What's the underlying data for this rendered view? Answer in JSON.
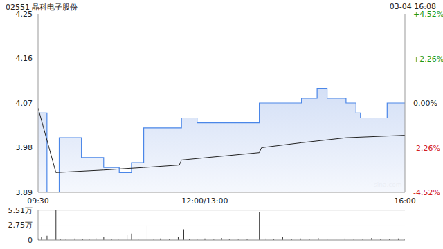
{
  "chart_data": [
    {
      "type": "line",
      "title": "02551 晶科电子股份",
      "subtitle": "03-04 16:08",
      "annotations": [
        "sina.com"
      ],
      "xlim": [
        0,
        330
      ],
      "xticks": [
        {
          "value": 0,
          "label": "09:30"
        },
        {
          "value": 150,
          "label": "12:00/13:00"
        },
        {
          "value": 330,
          "label": "16:00"
        }
      ],
      "ylim": [
        3.89,
        4.25
      ],
      "yticks": [
        3.89,
        3.98,
        4.07,
        4.16,
        4.25
      ],
      "y2lim": [
        -4.52,
        4.52
      ],
      "y2ticks": [
        {
          "value": -4.52,
          "label": "-4.52%"
        },
        {
          "value": -2.26,
          "label": "-2.26%"
        },
        {
          "value": 0,
          "label": "0.00%"
        },
        {
          "value": 2.26,
          "label": "+2.26%"
        },
        {
          "value": 4.52,
          "label": "+4.52%"
        }
      ],
      "grid": true,
      "series": [
        {
          "type": "area",
          "color": "#4a86e8",
          "line_style": "step",
          "x": [
            0,
            8,
            19,
            39,
            59,
            73,
            84,
            95,
            129,
            143,
            199,
            237,
            251,
            260,
            277,
            286,
            290,
            314,
            330
          ],
          "values": [
            4.05,
            3.89,
            4.0,
            3.96,
            3.94,
            3.93,
            3.95,
            4.02,
            4.04,
            4.03,
            4.07,
            4.08,
            4.1,
            4.08,
            4.07,
            4.05,
            4.04,
            4.07,
            4.07
          ]
        },
        {
          "type": "line",
          "color": "#222222",
          "line_style": "solid",
          "x": [
            0,
            16,
            59,
            95,
            127,
            129,
            199,
            201,
            237,
            277,
            330
          ],
          "values": [
            4.06,
            3.93,
            3.935,
            3.94,
            3.945,
            3.955,
            3.97,
            3.98,
            3.99,
            4.0,
            4.005
          ]
        }
      ]
    },
    {
      "type": "bar",
      "tick_labels": "y",
      "grid": true,
      "color": "#333333",
      "xlim": [
        0,
        330
      ],
      "xticks": [
        0,
        150,
        330
      ],
      "ylim": [
        0,
        55100
      ],
      "yticks": [
        0,
        {
          "value": 27500,
          "label": "2.75万"
        },
        {
          "value": 55100,
          "label": "5.51万"
        }
      ],
      "x": [
        0,
        3,
        8,
        16,
        20,
        25,
        33,
        40,
        46,
        52,
        59,
        66,
        72,
        80,
        84,
        90,
        98,
        104,
        110,
        118,
        126,
        131,
        136,
        143,
        150,
        158,
        165,
        172,
        180,
        188,
        199,
        205,
        212,
        220,
        228,
        236,
        244,
        252,
        260,
        268,
        276,
        284,
        292,
        300,
        308,
        316,
        324,
        330
      ],
      "values": [
        3000,
        5000,
        8000,
        55100,
        2000,
        1500,
        3000,
        2000,
        1000,
        4000,
        6000,
        2000,
        1500,
        9000,
        12000,
        2000,
        26000,
        1000,
        3000,
        2000,
        5000,
        20000,
        2000,
        1500,
        3000,
        1000,
        4000,
        2000,
        1000,
        2500,
        52000,
        3000,
        2000,
        6000,
        1500,
        3000,
        2000,
        4000,
        1000,
        2500,
        3000,
        1500,
        2000,
        4000,
        1500,
        2500,
        3000,
        2000
      ]
    }
  ]
}
